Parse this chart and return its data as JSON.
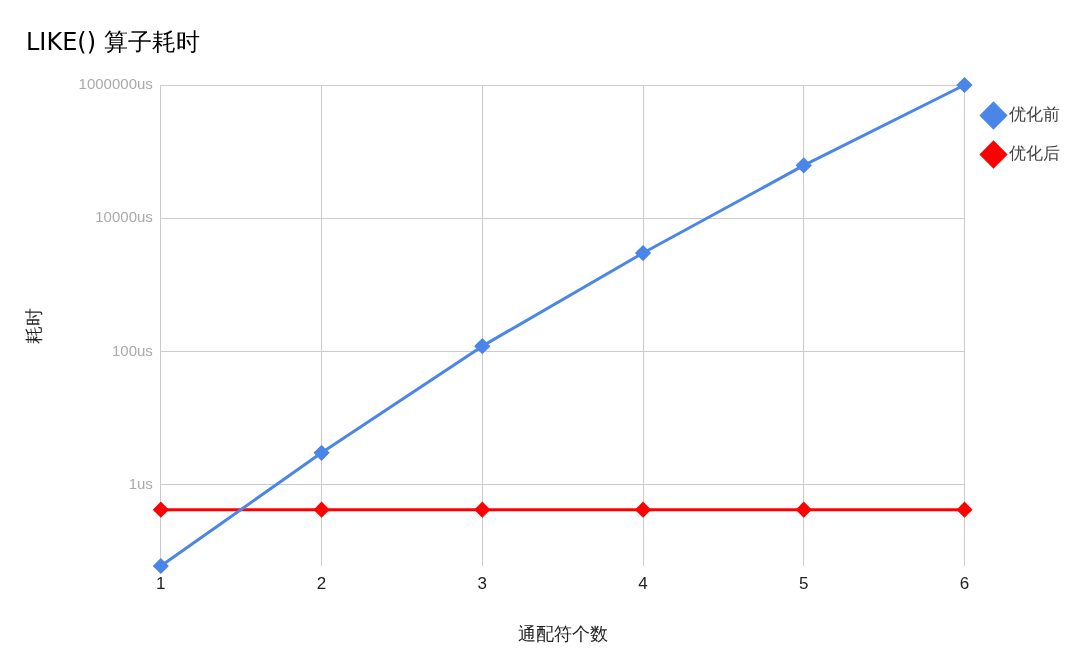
{
  "chart_data": {
    "type": "line",
    "title": "LIKE() 算子耗时",
    "xlabel": "通配符个数",
    "ylabel": "耗时",
    "x": [
      1,
      2,
      3,
      4,
      5,
      6
    ],
    "series": [
      {
        "name": "优化前",
        "color": "#4a86e8",
        "values": [
          0.06,
          3,
          120,
          3000,
          62000,
          1000000
        ]
      },
      {
        "name": "优化后",
        "color": "#ff0000",
        "values": [
          0.42,
          0.42,
          0.42,
          0.42,
          0.42,
          0.42
        ]
      }
    ],
    "log": "y",
    "xlim": [
      1,
      6
    ],
    "xticks": [
      1,
      2,
      3,
      4,
      5,
      6
    ],
    "ylim": [
      0.06,
      1000000
    ],
    "yticks": [
      {
        "value": 1,
        "label": "1us"
      },
      {
        "value": 100,
        "label": "100us"
      },
      {
        "value": 10000,
        "label": "10000us"
      },
      {
        "value": 1000000,
        "label": "1000000us"
      }
    ],
    "grid": true,
    "legend": "top right",
    "marker": "diamond",
    "line_style": "solid"
  }
}
